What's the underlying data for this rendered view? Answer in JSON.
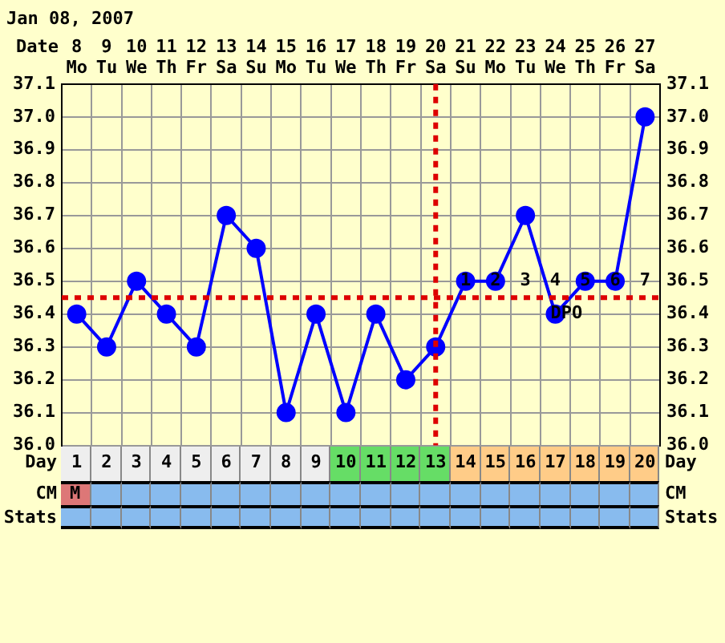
{
  "chart_data": {
    "type": "line",
    "title": "Jan 08, 2007",
    "xlabel": "Date",
    "x2label": "Day",
    "categories": [
      "8 Mo",
      "9 Tu",
      "10 We",
      "11 Th",
      "12 Fr",
      "13 Sa",
      "14 Su",
      "15 Mo",
      "16 Tu",
      "17 We",
      "18 Th",
      "19 Fr",
      "20 Sa",
      "21 Su",
      "22 Mo",
      "23 Tu",
      "24 We",
      "25 Th",
      "26 Fr",
      "27 Sa"
    ],
    "series": [
      {
        "color": "#0000ff",
        "values": [
          36.4,
          36.3,
          36.5,
          36.4,
          36.3,
          36.7,
          36.6,
          36.1,
          36.4,
          36.1,
          36.4,
          36.2,
          36.3,
          36.5,
          36.5,
          36.7,
          36.4,
          36.5,
          36.5,
          37.0
        ]
      }
    ],
    "ylim": [
      36.0,
      37.1
    ],
    "yticks": [
      {
        "value": 36,
        "label": "36.0"
      },
      36.1,
      36.2,
      36.3,
      36.4,
      36.5,
      36.6,
      36.7,
      36.8,
      36.9,
      {
        "value": 37,
        "label": "37.0"
      },
      37.1
    ],
    "y2lim": [
      36.0,
      37.1
    ],
    "y2ticks": [
      {
        "value": 36,
        "label": "36.0"
      },
      36.1,
      36.2,
      36.3,
      36.4,
      36.5,
      36.6,
      36.7,
      36.8,
      36.9,
      {
        "value": 37,
        "label": "37.0"
      },
      37.1
    ],
    "x2lim": [
      0.5,
      20.5
    ],
    "x2ticks": [
      1,
      2,
      3,
      4,
      5,
      6,
      7,
      8,
      9,
      10,
      11,
      12,
      13,
      14,
      15,
      16,
      17,
      18,
      19,
      20
    ],
    "ref_lines": [
      {
        "axis": "y",
        "value": 36.45,
        "color": "#dd0000",
        "line_style": "dotted"
      },
      {
        "axis": "x",
        "value": "20 Sa",
        "color": "#dd0000",
        "line_style": "dotted"
      }
    ],
    "annotations": [
      "CM",
      "Stats",
      "M",
      {
        "text": "1",
        "x": "21 Su",
        "y": 36.5
      },
      {
        "text": "2",
        "x": "22 Mo",
        "y": 36.5
      },
      "3",
      {
        "text": "4",
        "x": "24 We",
        "y": 36.5
      },
      {
        "text": "DPO",
        "x": "24 We",
        "y": 36.4
      },
      {
        "text": "5",
        "x": "25 Th",
        "y": 36.5
      },
      {
        "text": "6",
        "x": "26 Fr",
        "y": 36.5
      },
      "7"
    ],
    "grid": true,
    "legend": false,
    "marker": "circle",
    "line_style": "solid"
  }
}
